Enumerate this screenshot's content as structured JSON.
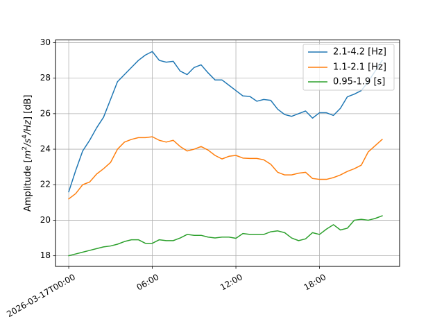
{
  "chart_data": {
    "type": "line",
    "title": "",
    "xlabel": "",
    "ylabel": "Amplitude [m²/s⁴/Hz] [dB]",
    "ylabel_parts": {
      "prefix": "Amplitude [",
      "m": "m",
      "exp2": "2",
      "slash_s": "/s",
      "exp4": "4",
      "hz": "/Hz",
      "suffix": "] [dB]"
    },
    "x_unit": "hours from 2026-03-17T00:00",
    "xlim": [
      -0.95,
      23.75
    ],
    "ylim": [
      17.4,
      30.15
    ],
    "xticks": [
      {
        "value": 0,
        "label": "2026-03-17T00:00"
      },
      {
        "value": 6,
        "label": "06:00"
      },
      {
        "value": 12,
        "label": "12:00"
      },
      {
        "value": 18,
        "label": "18:00"
      }
    ],
    "yticks": [
      {
        "value": 18,
        "label": "18"
      },
      {
        "value": 20,
        "label": "20"
      },
      {
        "value": 22,
        "label": "22"
      },
      {
        "value": 24,
        "label": "24"
      },
      {
        "value": 26,
        "label": "26"
      },
      {
        "value": 28,
        "label": "28"
      },
      {
        "value": 30,
        "label": "30"
      }
    ],
    "grid": true,
    "legend_position": "top-right",
    "x": [
      0,
      0.5,
      1,
      1.5,
      2,
      2.5,
      3,
      3.5,
      4,
      4.5,
      5,
      5.5,
      6,
      6.5,
      7,
      7.5,
      8,
      8.5,
      9,
      9.5,
      10,
      10.5,
      11,
      11.5,
      12,
      12.5,
      13,
      13.5,
      14,
      14.5,
      15,
      15.5,
      16,
      16.5,
      17,
      17.5,
      18,
      18.5,
      19,
      19.5,
      20,
      20.5,
      21,
      21.5,
      22,
      22.5
    ],
    "series": [
      {
        "name": "2.1-4.2 [Hz]",
        "color": "#1f77b4",
        "values": [
          21.6,
          22.8,
          23.9,
          24.5,
          25.2,
          25.8,
          26.8,
          27.8,
          28.2,
          28.6,
          29.0,
          29.3,
          29.5,
          29.0,
          28.9,
          28.95,
          28.4,
          28.2,
          28.6,
          28.75,
          28.3,
          27.9,
          27.9,
          27.6,
          27.3,
          27.0,
          26.97,
          26.7,
          26.8,
          26.75,
          26.25,
          25.95,
          25.85,
          26.0,
          26.15,
          25.75,
          26.05,
          26.05,
          25.9,
          26.3,
          26.95,
          27.1,
          27.3,
          27.8,
          28.4,
          29.0
        ]
      },
      {
        "name": "1.1-2.1 [Hz]",
        "color": "#ff7f0e",
        "values": [
          21.2,
          21.5,
          22.0,
          22.15,
          22.6,
          22.9,
          23.25,
          24.0,
          24.4,
          24.55,
          24.65,
          24.65,
          24.7,
          24.5,
          24.4,
          24.5,
          24.15,
          23.9,
          24.0,
          24.15,
          23.95,
          23.65,
          23.45,
          23.6,
          23.65,
          23.5,
          23.48,
          23.48,
          23.4,
          23.15,
          22.7,
          22.55,
          22.55,
          22.65,
          22.7,
          22.35,
          22.3,
          22.3,
          22.4,
          22.55,
          22.75,
          22.9,
          23.1,
          23.85,
          24.2,
          24.55
        ]
      },
      {
        "name": "0.95-1.9 [s]",
        "color": "#2ca02c",
        "values": [
          18.0,
          18.1,
          18.2,
          18.3,
          18.4,
          18.5,
          18.55,
          18.65,
          18.8,
          18.9,
          18.9,
          18.7,
          18.7,
          18.9,
          18.85,
          18.85,
          19.0,
          19.2,
          19.15,
          19.15,
          19.05,
          19.0,
          19.05,
          19.05,
          18.98,
          19.25,
          19.2,
          19.2,
          19.2,
          19.35,
          19.4,
          19.3,
          19.0,
          18.85,
          18.95,
          19.3,
          19.2,
          19.5,
          19.75,
          19.45,
          19.55,
          20.0,
          20.05,
          20.0,
          20.1,
          20.25
        ]
      }
    ]
  }
}
